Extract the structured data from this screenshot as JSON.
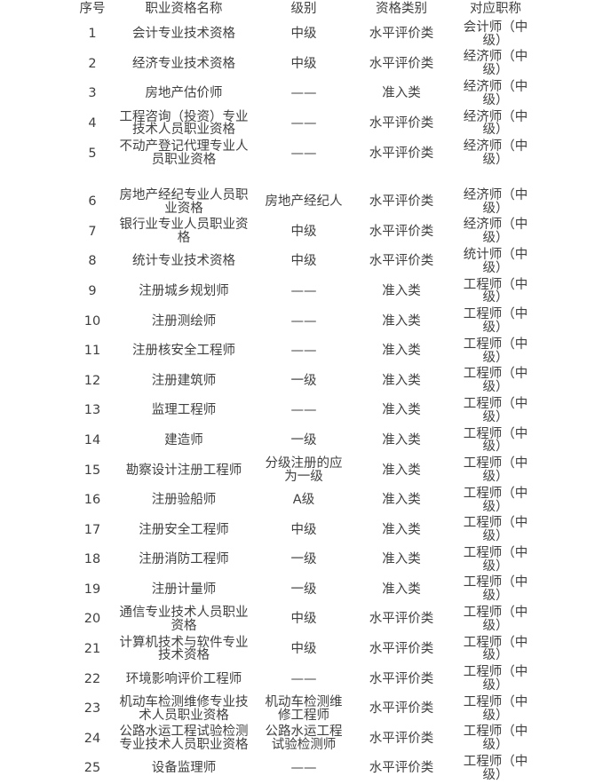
{
  "colors": {
    "text": "#404040",
    "background": "#ffffff"
  },
  "table": {
    "columns": [
      {
        "key": "no",
        "label": "序号"
      },
      {
        "key": "name",
        "label": "职业资格名称"
      },
      {
        "key": "level",
        "label": "级别"
      },
      {
        "key": "category",
        "label": "资格类别"
      },
      {
        "key": "title",
        "label": "对应职称"
      }
    ],
    "rows": [
      {
        "no": "1",
        "name": "会计专业技术资格",
        "level": "中级",
        "category": "水平评价类",
        "title": "会计师（中\n级）"
      },
      {
        "no": "2",
        "name": "经济专业技术资格",
        "level": "中级",
        "category": "水平评价类",
        "title": "经济师（中\n级）"
      },
      {
        "no": "3",
        "name": "房地产估价师",
        "level": "——",
        "category": "准入类",
        "title": "经济师（中\n级）"
      },
      {
        "no": "4",
        "name": "工程咨询（投资）专业\n技术人员职业资格",
        "level": "——",
        "category": "水平评价类",
        "title": "经济师（中\n级）"
      },
      {
        "no": "5",
        "name": "不动产登记代理专业人\n员职业资格",
        "level": "——",
        "category": "水平评价类",
        "title": "经济师（中\n级）"
      },
      {
        "no": "6",
        "name": "房地产经纪专业人员职\n业资格",
        "level": "房地产经纪人",
        "category": "水平评价类",
        "title": "经济师（中\n级）"
      },
      {
        "no": "7",
        "name": "银行业专业人员职业资\n格",
        "level": "中级",
        "category": "水平评价类",
        "title": "经济师（中\n级）"
      },
      {
        "no": "8",
        "name": "统计专业技术资格",
        "level": "中级",
        "category": "水平评价类",
        "title": "统计师（中\n级）"
      },
      {
        "no": "9",
        "name": "注册城乡规划师",
        "level": "——",
        "category": "准入类",
        "title": "工程师（中\n级）"
      },
      {
        "no": "10",
        "name": "注册测绘师",
        "level": "——",
        "category": "准入类",
        "title": "工程师（中\n级）"
      },
      {
        "no": "11",
        "name": "注册核安全工程师",
        "level": "——",
        "category": "准入类",
        "title": "工程师（中\n级）"
      },
      {
        "no": "12",
        "name": "注册建筑师",
        "level": "一级",
        "category": "准入类",
        "title": "工程师（中\n级）"
      },
      {
        "no": "13",
        "name": "监理工程师",
        "level": "——",
        "category": "准入类",
        "title": "工程师（中\n级）"
      },
      {
        "no": "14",
        "name": "建造师",
        "level": "一级",
        "category": "准入类",
        "title": "工程师（中\n级）"
      },
      {
        "no": "15",
        "name": "勘察设计注册工程师",
        "level": "分级注册的应\n为一级",
        "category": "准入类",
        "title": "工程师（中\n级）"
      },
      {
        "no": "16",
        "name": "注册验船师",
        "level": "A级",
        "category": "准入类",
        "title": "工程师（中\n级）"
      },
      {
        "no": "17",
        "name": "注册安全工程师",
        "level": "中级",
        "category": "准入类",
        "title": "工程师（中\n级）"
      },
      {
        "no": "18",
        "name": "注册消防工程师",
        "level": "一级",
        "category": "准入类",
        "title": "工程师（中\n级）"
      },
      {
        "no": "19",
        "name": "注册计量师",
        "level": "一级",
        "category": "准入类",
        "title": "工程师（中\n级）"
      },
      {
        "no": "20",
        "name": "通信专业技术人员职业\n资格",
        "level": "中级",
        "category": "水平评价类",
        "title": "工程师（中\n级）"
      },
      {
        "no": "21",
        "name": "计算机技术与软件专业\n技术资格",
        "level": "中级",
        "category": "水平评价类",
        "title": "工程师（中\n级）"
      },
      {
        "no": "22",
        "name": "环境影响评价工程师",
        "level": "——",
        "category": "水平评价类",
        "title": "工程师（中\n级）"
      },
      {
        "no": "23",
        "name": "机动车检测维修专业技\n术人员职业资格",
        "level": "机动车检测维\n修工程师",
        "category": "水平评价类",
        "title": "工程师（中\n级）"
      },
      {
        "no": "24",
        "name": "公路水运工程试验检测\n专业技术人员职业资格",
        "level": "公路水运工程\n试验检测师",
        "category": "水平评价类",
        "title": "工程师（中\n级）"
      },
      {
        "no": "25",
        "name": "设备监理师",
        "level": "——",
        "category": "水平评价类",
        "title": "工程师（中\n级）"
      }
    ]
  }
}
